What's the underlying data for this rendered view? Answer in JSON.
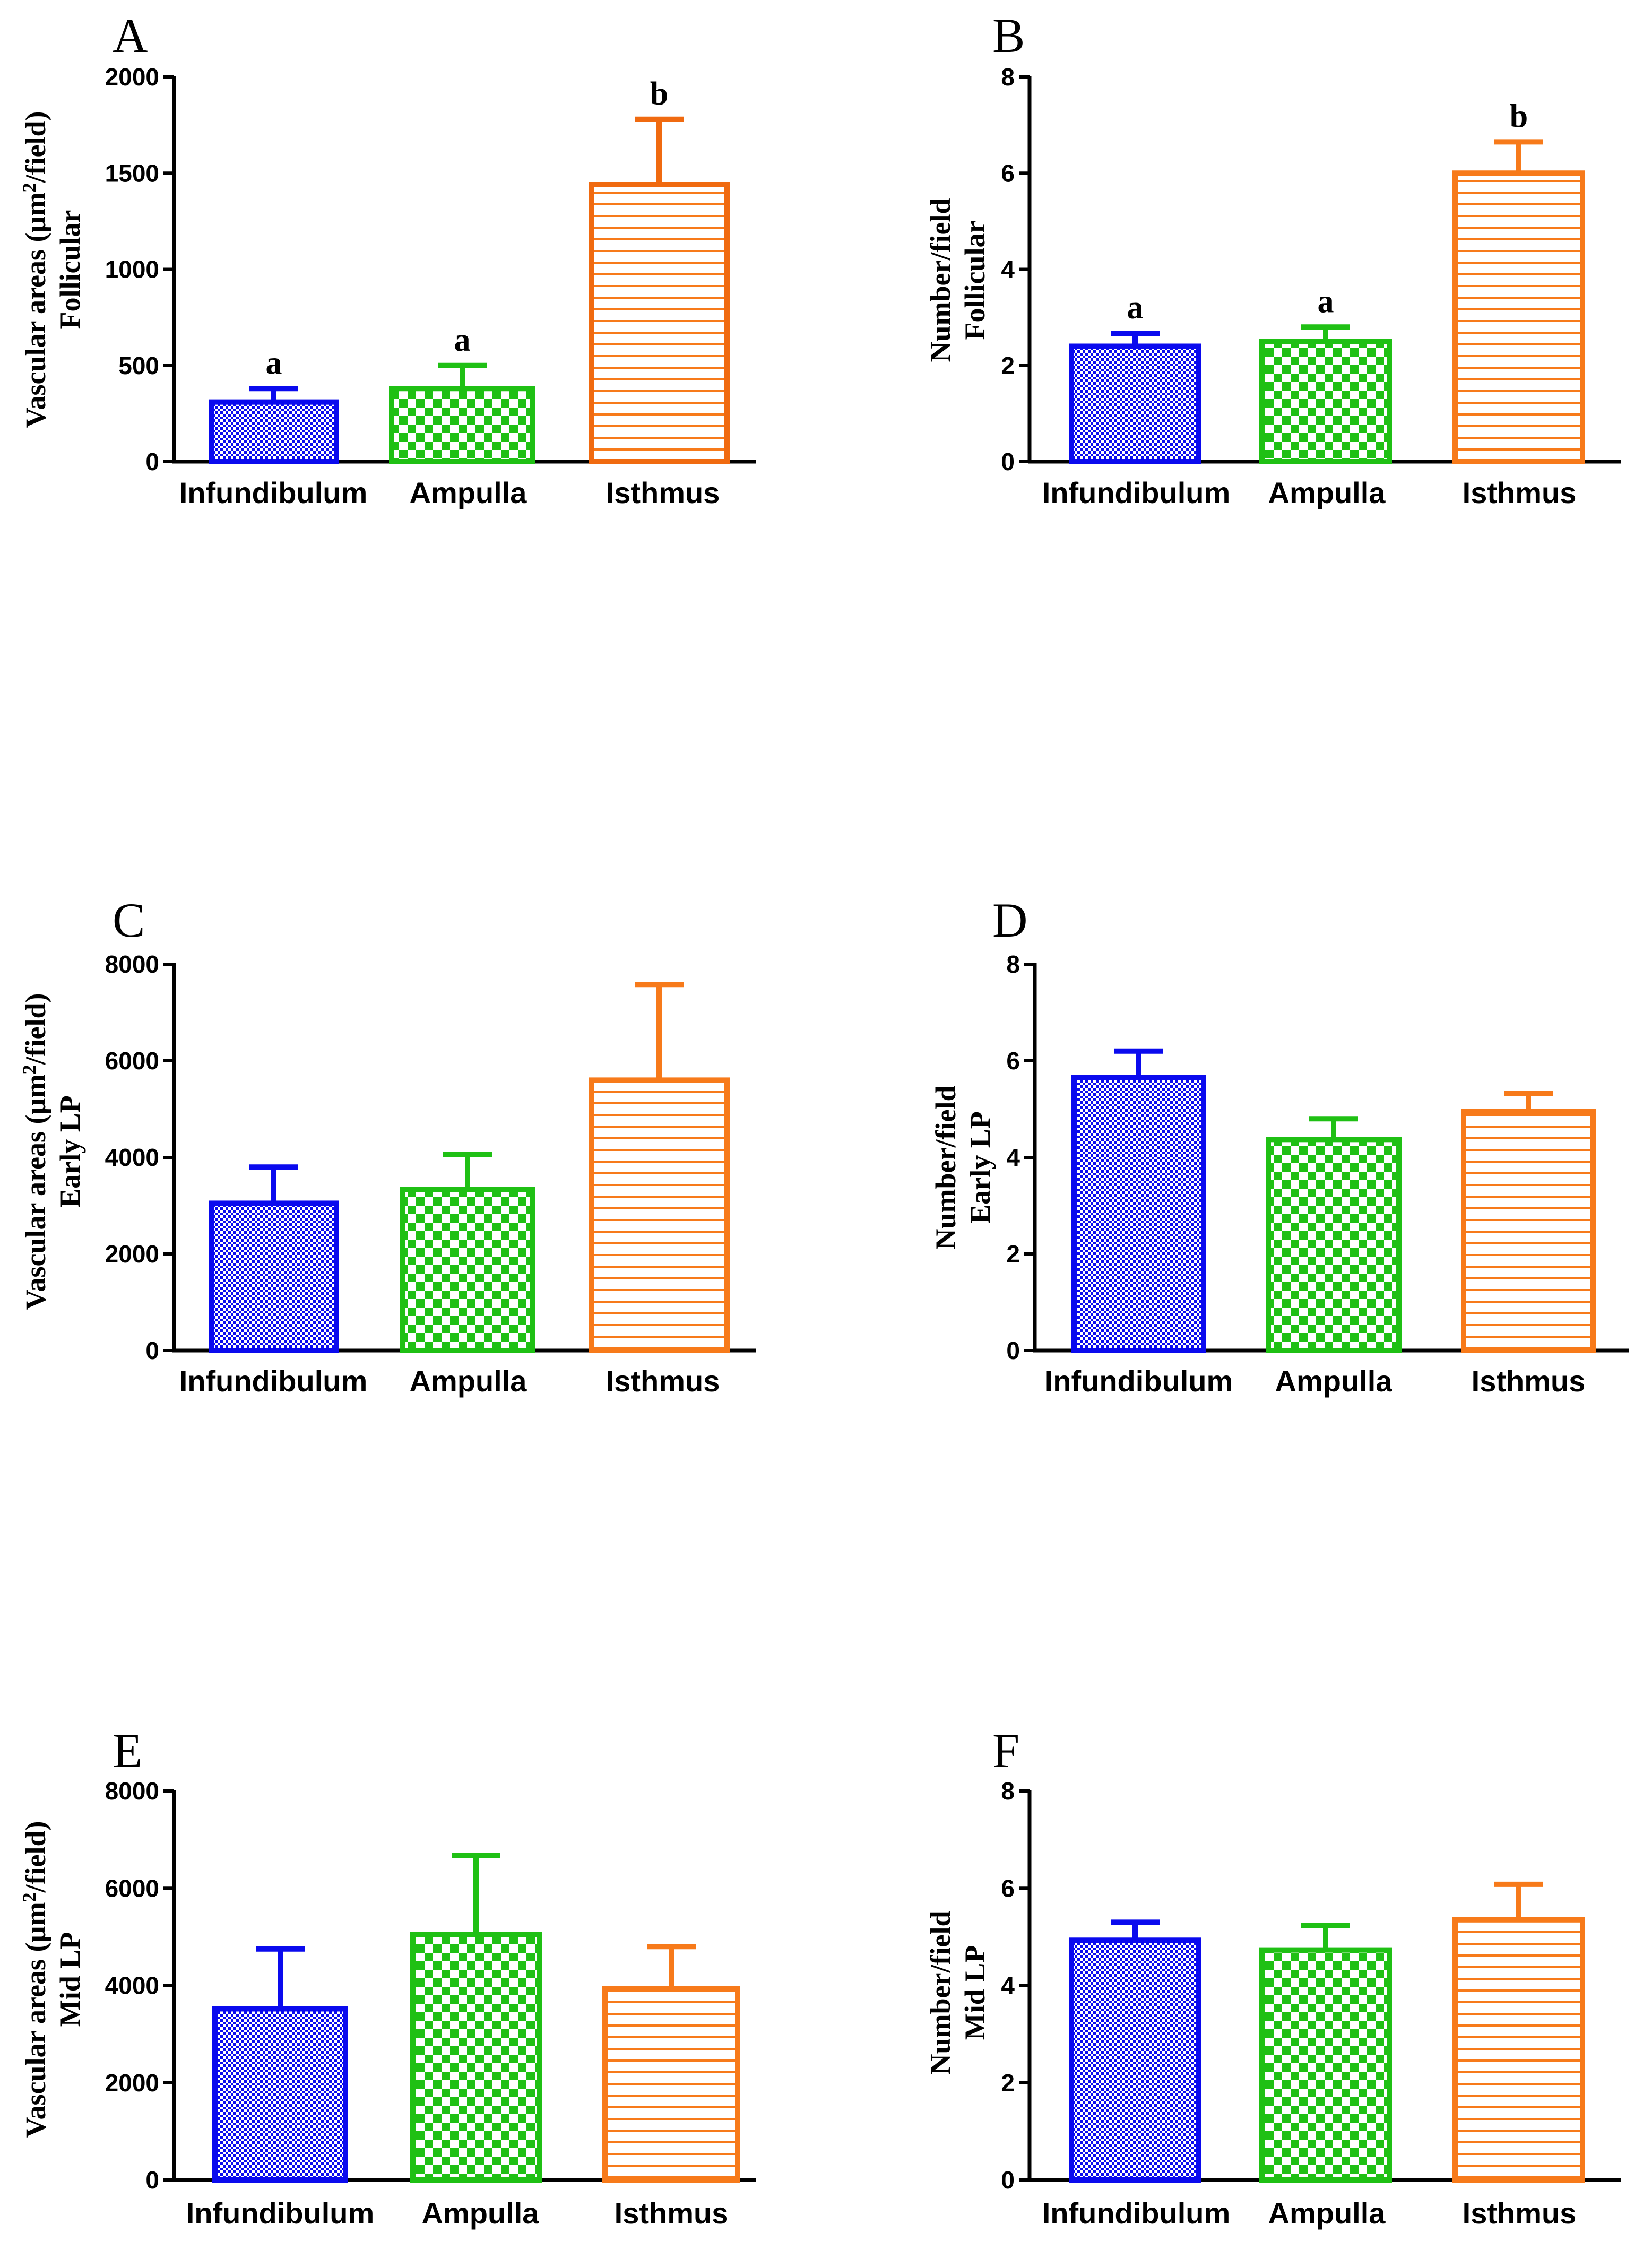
{
  "colors": {
    "infundibulum": "#0a0aee",
    "ampulla": "#1fc014",
    "isthmus": "#f77a1a",
    "isthmus_a": "#f06a10"
  },
  "chart_data": [
    {
      "panel": "A",
      "type": "bar",
      "ylabel_1": "Vascular areas (µm",
      "ylabel_sup": "2",
      "ylabel_2": "/field)",
      "ylabel_sub": "Follicular",
      "ylim": [
        0,
        2000
      ],
      "yticks": [
        "0",
        "500",
        "1000",
        "1500",
        "2000"
      ],
      "categories": [
        "Infundibulum",
        "Ampulla",
        "Isthmus"
      ],
      "values": [
        310,
        380,
        1440
      ],
      "errors": [
        70,
        120,
        340
      ],
      "significance": [
        "a",
        "a",
        "b"
      ]
    },
    {
      "panel": "B",
      "type": "bar",
      "ylabel_1": "Number/field",
      "ylabel_sup": "",
      "ylabel_2": "",
      "ylabel_sub": "Follicular",
      "ylim": [
        0,
        8
      ],
      "yticks": [
        "0",
        "2",
        "4",
        "6",
        "8"
      ],
      "categories": [
        "Infundibulum",
        "Ampulla",
        "Isthmus"
      ],
      "values": [
        2.4,
        2.5,
        6.0
      ],
      "errors": [
        0.27,
        0.3,
        0.65
      ],
      "significance": [
        "a",
        "a",
        "b"
      ]
    },
    {
      "panel": "C",
      "type": "bar",
      "ylabel_1": "Vascular areas (µm",
      "ylabel_sup": "2",
      "ylabel_2": "/field)",
      "ylabel_sub": "Early LP",
      "ylim": [
        0,
        8000
      ],
      "yticks": [
        "0",
        "2000",
        "4000",
        "6000",
        "8000"
      ],
      "categories": [
        "Infundibulum",
        "Ampulla",
        "Isthmus"
      ],
      "values": [
        3050,
        3330,
        5600
      ],
      "errors": [
        750,
        730,
        1980
      ],
      "significance": [
        "",
        "",
        ""
      ]
    },
    {
      "panel": "D",
      "type": "bar",
      "ylabel_1": "Number/field",
      "ylabel_sup": "",
      "ylabel_2": "",
      "ylabel_sub": "Early LP",
      "ylim": [
        0,
        8
      ],
      "yticks": [
        "0",
        "2",
        "4",
        "6",
        "8"
      ],
      "categories": [
        "Infundibulum",
        "Ampulla",
        "Isthmus"
      ],
      "values": [
        5.65,
        4.37,
        4.95
      ],
      "errors": [
        0.55,
        0.43,
        0.38
      ],
      "significance": [
        "",
        "",
        ""
      ]
    },
    {
      "panel": "E",
      "type": "bar",
      "ylabel_1": "Vascular areas (µm",
      "ylabel_sup": "2",
      "ylabel_2": "/field)",
      "ylabel_sub": "Mid LP",
      "ylim": [
        0,
        8000
      ],
      "yticks": [
        "0",
        "2000",
        "4000",
        "6000",
        "8000"
      ],
      "categories": [
        "Infundibulum",
        "Ampulla",
        "Isthmus"
      ],
      "values": [
        3520,
        5050,
        3930
      ],
      "errors": [
        1230,
        1630,
        870
      ],
      "significance": [
        "",
        "",
        ""
      ]
    },
    {
      "panel": "F",
      "type": "bar",
      "ylabel_1": "Number/field",
      "ylabel_sup": "",
      "ylabel_2": "",
      "ylabel_sub": "Mid LP",
      "ylim": [
        0,
        8
      ],
      "yticks": [
        "0",
        "2",
        "4",
        "6",
        "8"
      ],
      "categories": [
        "Infundibulum",
        "Ampulla",
        "Isthmus"
      ],
      "values": [
        4.93,
        4.73,
        5.35
      ],
      "errors": [
        0.37,
        0.5,
        0.73
      ],
      "significance": [
        "",
        "",
        ""
      ]
    }
  ]
}
